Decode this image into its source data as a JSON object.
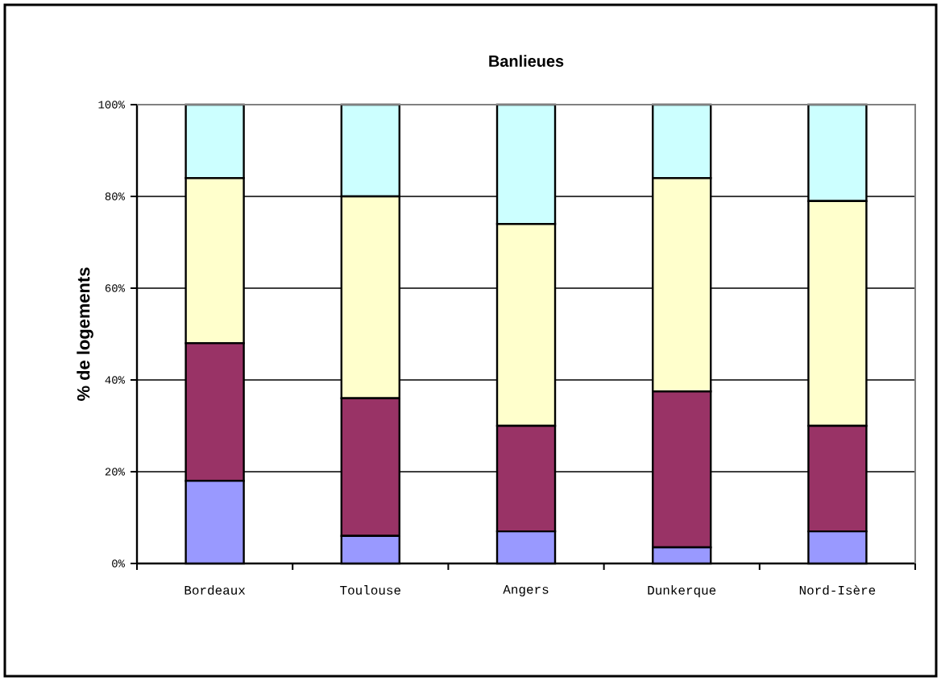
{
  "chart_data": {
    "type": "bar",
    "stacked": true,
    "title": "Banlieues",
    "ylabel": "% de logements",
    "categories": [
      "Bordeaux",
      "Toulouse",
      "Angers",
      "Dunkerque",
      "Nord-Isère"
    ],
    "series": [
      {
        "color": "#9999ff",
        "values": [
          18,
          6,
          7,
          3.5,
          7
        ]
      },
      {
        "color": "#993366",
        "values": [
          30,
          30,
          23,
          34,
          23
        ]
      },
      {
        "color": "#ffffcc",
        "values": [
          36,
          44,
          44,
          46.5,
          49
        ]
      },
      {
        "color": "#ccffff",
        "values": [
          16,
          20,
          26,
          16,
          21
        ]
      }
    ],
    "ylim": [
      0,
      100
    ],
    "yticks": [
      {
        "value": 0,
        "label": "0%"
      },
      {
        "value": 20,
        "label": "20%"
      },
      {
        "value": 40,
        "label": "40%"
      },
      {
        "value": 60,
        "label": "60%"
      },
      {
        "value": 80,
        "label": "80%"
      },
      {
        "value": 100,
        "label": "100%"
      }
    ],
    "grid": "y"
  }
}
